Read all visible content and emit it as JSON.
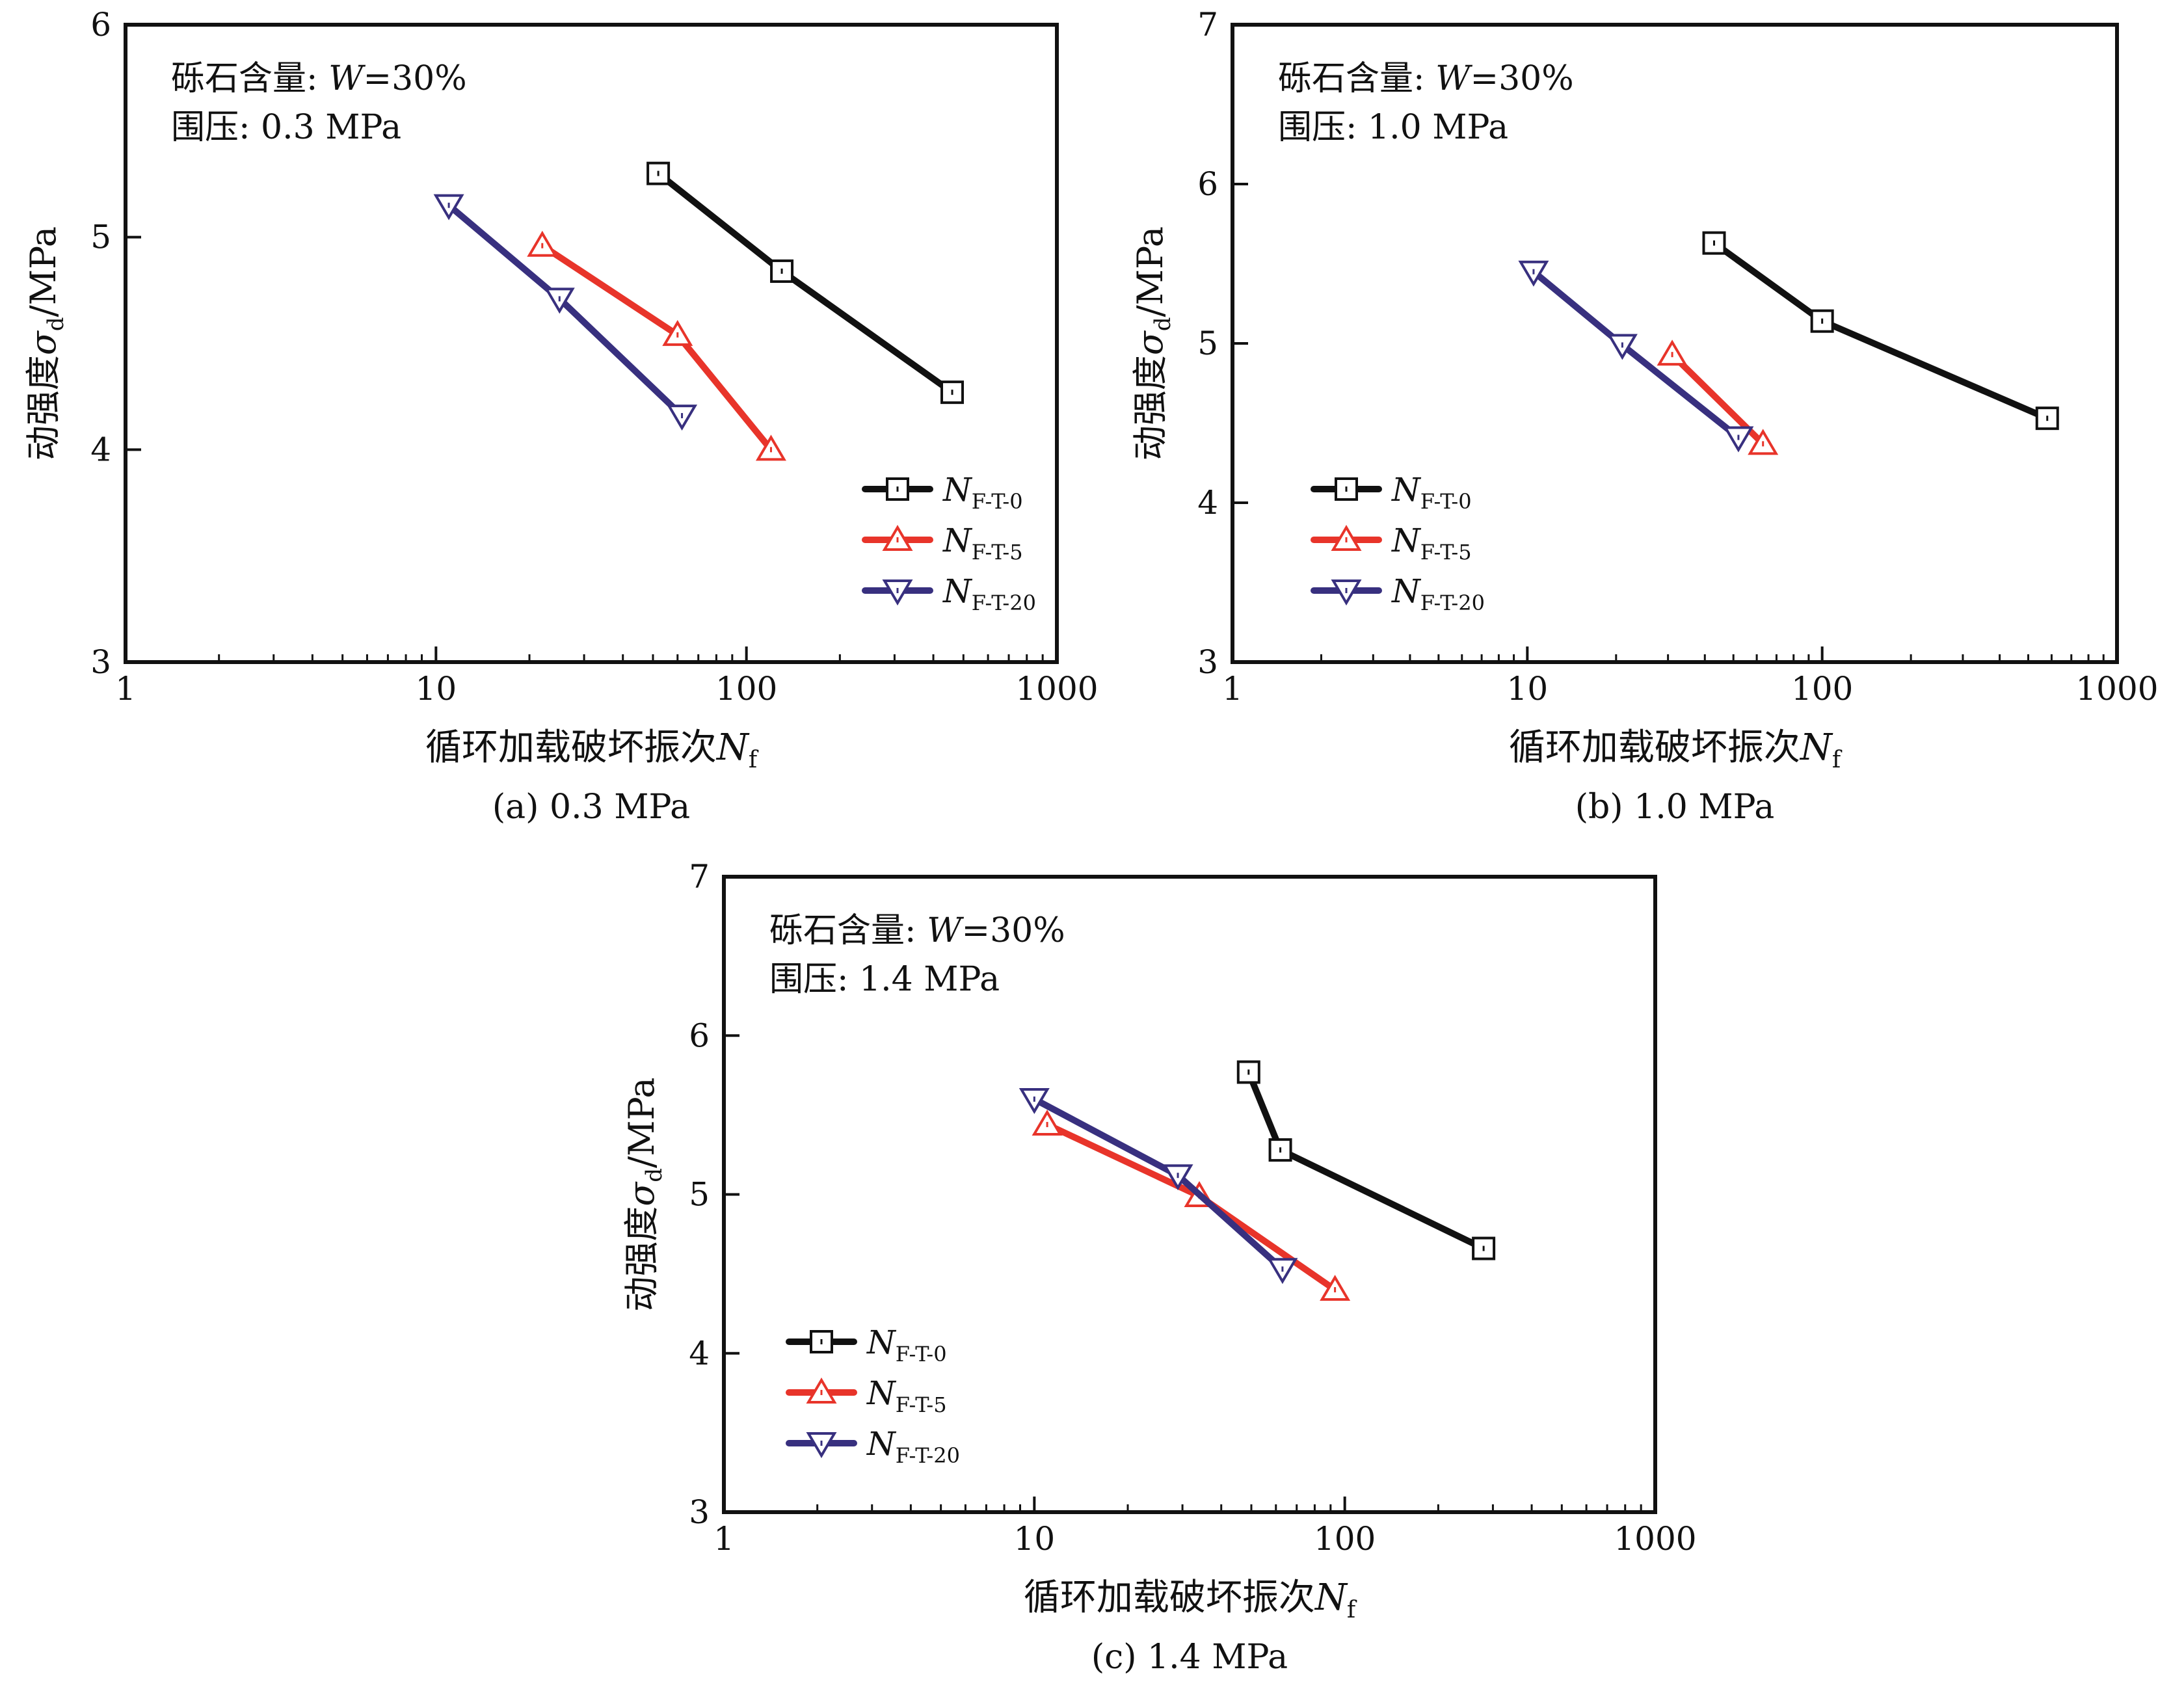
{
  "colors": {
    "series": [
      "#111111",
      "#e8342a",
      "#38307f"
    ],
    "axis": "#111111"
  },
  "chart_data": [
    {
      "type": "line",
      "caption": "(a) 0.3 MPa",
      "annotation": [
        "砾石含量: ",
        "W",
        "=30%"
      ],
      "annotation2": "围压: 0.3 MPa",
      "ylabel": "动强度",
      "ylabel_symbol": "σ",
      "ylabel_sub": "d",
      "ylabel_unit": "/MPa",
      "xlabel": "循环加载破坏振次",
      "xlabel_symbol": "N",
      "xlabel_sub": "f",
      "xscale": "log",
      "xlim": [
        1,
        1000
      ],
      "ylim": [
        3,
        6
      ],
      "xticks": [
        1,
        10,
        100,
        1000
      ],
      "xtick_labels": [
        "1",
        "10",
        "100",
        "1000"
      ],
      "yticks": [
        3,
        4,
        5,
        6
      ],
      "ytick_labels": [
        "3",
        "4",
        "5",
        "6"
      ],
      "legend_position": "bottom-right",
      "series": [
        {
          "name": "N",
          "sub": "F-T-0",
          "marker": "square",
          "x": [
            52,
            130,
            460
          ],
          "y": [
            5.3,
            4.84,
            4.27
          ]
        },
        {
          "name": "N",
          "sub": "F-T-5",
          "marker": "triangle-up",
          "x": [
            22,
            60,
            120
          ],
          "y": [
            4.96,
            4.54,
            4.0
          ]
        },
        {
          "name": "N",
          "sub": "F-T-20",
          "marker": "triangle-down",
          "x": [
            11,
            25,
            62
          ],
          "y": [
            5.15,
            4.71,
            4.16
          ]
        }
      ]
    },
    {
      "type": "line",
      "caption": "(b) 1.0 MPa",
      "annotation": [
        "砾石含量: ",
        "W",
        "=30%"
      ],
      "annotation2": "围压: 1.0 MPa",
      "ylabel": "动强度",
      "ylabel_symbol": "σ",
      "ylabel_sub": "d",
      "ylabel_unit": "/MPa",
      "xlabel": "循环加载破坏振次",
      "xlabel_symbol": "N",
      "xlabel_sub": "f",
      "xscale": "log",
      "xlim": [
        1,
        1000
      ],
      "ylim": [
        3,
        7
      ],
      "xticks": [
        1,
        10,
        100,
        1000
      ],
      "xtick_labels": [
        "1",
        "10",
        "100",
        "1000"
      ],
      "yticks": [
        3,
        4,
        5,
        6,
        7
      ],
      "ytick_labels": [
        "3",
        "4",
        "5",
        "6",
        "7"
      ],
      "legend_position": "bottom-left",
      "series": [
        {
          "name": "N",
          "sub": "F-T-0",
          "marker": "square",
          "x": [
            43,
            100,
            580
          ],
          "y": [
            5.63,
            5.14,
            4.53
          ]
        },
        {
          "name": "N",
          "sub": "F-T-5",
          "marker": "triangle-up",
          "x": [
            31,
            63
          ],
          "y": [
            4.93,
            4.37
          ]
        },
        {
          "name": "N",
          "sub": "F-T-20",
          "marker": "triangle-down",
          "x": [
            10.5,
            21,
            52
          ],
          "y": [
            5.45,
            4.99,
            4.41
          ]
        }
      ]
    },
    {
      "type": "line",
      "caption": "(c) 1.4 MPa",
      "annotation": [
        "砾石含量: ",
        "W",
        "=30%"
      ],
      "annotation2": "围压: 1.4 MPa",
      "ylabel": "动强度",
      "ylabel_symbol": "σ",
      "ylabel_sub": "d",
      "ylabel_unit": "/MPa",
      "xlabel": "循环加载破坏振次",
      "xlabel_symbol": "N",
      "xlabel_sub": "f",
      "xscale": "log",
      "xlim": [
        1,
        1000
      ],
      "ylim": [
        3,
        7
      ],
      "xticks": [
        1,
        10,
        100,
        1000
      ],
      "xtick_labels": [
        "1",
        "10",
        "100",
        "1000"
      ],
      "yticks": [
        3,
        4,
        5,
        6,
        7
      ],
      "ytick_labels": [
        "3",
        "4",
        "5",
        "6",
        "7"
      ],
      "legend_position": "bottom-left",
      "series": [
        {
          "name": "N",
          "sub": "F-T-0",
          "marker": "square",
          "x": [
            49,
            62,
            280
          ],
          "y": [
            5.77,
            5.28,
            4.66
          ]
        },
        {
          "name": "N",
          "sub": "F-T-5",
          "marker": "triangle-up",
          "x": [
            11,
            34,
            93
          ],
          "y": [
            5.44,
            4.99,
            4.4
          ]
        },
        {
          "name": "N",
          "sub": "F-T-20",
          "marker": "triangle-down",
          "x": [
            10,
            29,
            63
          ],
          "y": [
            5.6,
            5.12,
            4.53
          ]
        }
      ]
    }
  ]
}
